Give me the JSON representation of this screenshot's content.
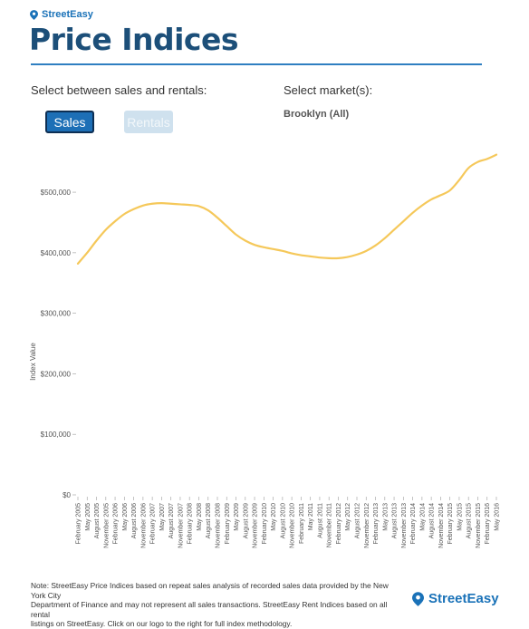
{
  "brand": {
    "name": "StreetEasy"
  },
  "header": {
    "title": "Price Indices"
  },
  "controls": {
    "sales_rentals_label": "Select between sales and rentals:",
    "market_label": "Select market(s):",
    "sales_button": "Sales",
    "rentals_button": "Rentals",
    "selected_market": "Brooklyn (All)"
  },
  "chart_data": {
    "type": "line",
    "ylabel": "Index Value",
    "ylim": [
      0,
      560000
    ],
    "yticks": [
      0,
      100000,
      200000,
      300000,
      400000,
      500000
    ],
    "ytick_labels": [
      "$0",
      "$100,000",
      "$200,000",
      "$300,000",
      "$400,000",
      "$500,000"
    ],
    "line_color": "#f5c85a",
    "grid": false,
    "x": [
      "February 2005",
      "May 2005",
      "August 2005",
      "November 2005",
      "February 2006",
      "May 2006",
      "August 2006",
      "November 2006",
      "February 2007",
      "May 2007",
      "August 2007",
      "November 2007",
      "February 2008",
      "May 2008",
      "August 2008",
      "November 2008",
      "February 2009",
      "May 2009",
      "August 2009",
      "November 2009",
      "February 2010",
      "May 2010",
      "August 2010",
      "November 2010",
      "February 2011",
      "May 2011",
      "August 2011",
      "November 2011",
      "February 2012",
      "May 2012",
      "August 2012",
      "November 2012",
      "February 2013",
      "May 2013",
      "August 2013",
      "November 2013",
      "February 2014",
      "May 2014",
      "August 2014",
      "November 2014",
      "February 2015",
      "May 2015",
      "August 2015",
      "November 2015",
      "February 2016",
      "May 2016"
    ],
    "series": [
      {
        "values": [
          382000,
          400000,
          420000,
          438000,
          452000,
          464000,
          472000,
          478000,
          481000,
          482000,
          481000,
          480000,
          479000,
          477000,
          470000,
          458000,
          444000,
          430000,
          420000,
          413000,
          409000,
          406000,
          403000,
          399000,
          396000,
          394000,
          392000,
          391000,
          391000,
          393000,
          397000,
          403000,
          412000,
          424000,
          438000,
          452000,
          466000,
          478000,
          488000,
          495000,
          503000,
          520000,
          540000,
          550000,
          555000,
          562000
        ]
      }
    ]
  },
  "footer": {
    "note_lines": [
      "Note: StreetEasy Price Indices based on repeat sales analysis of recorded sales data provided by the New York City",
      "Department of Finance and may not represent all sales transactions. StreetEasy Rent Indices based on all rental",
      "listings on StreetEasy. Click on our logo to the right for full index methodology."
    ]
  }
}
